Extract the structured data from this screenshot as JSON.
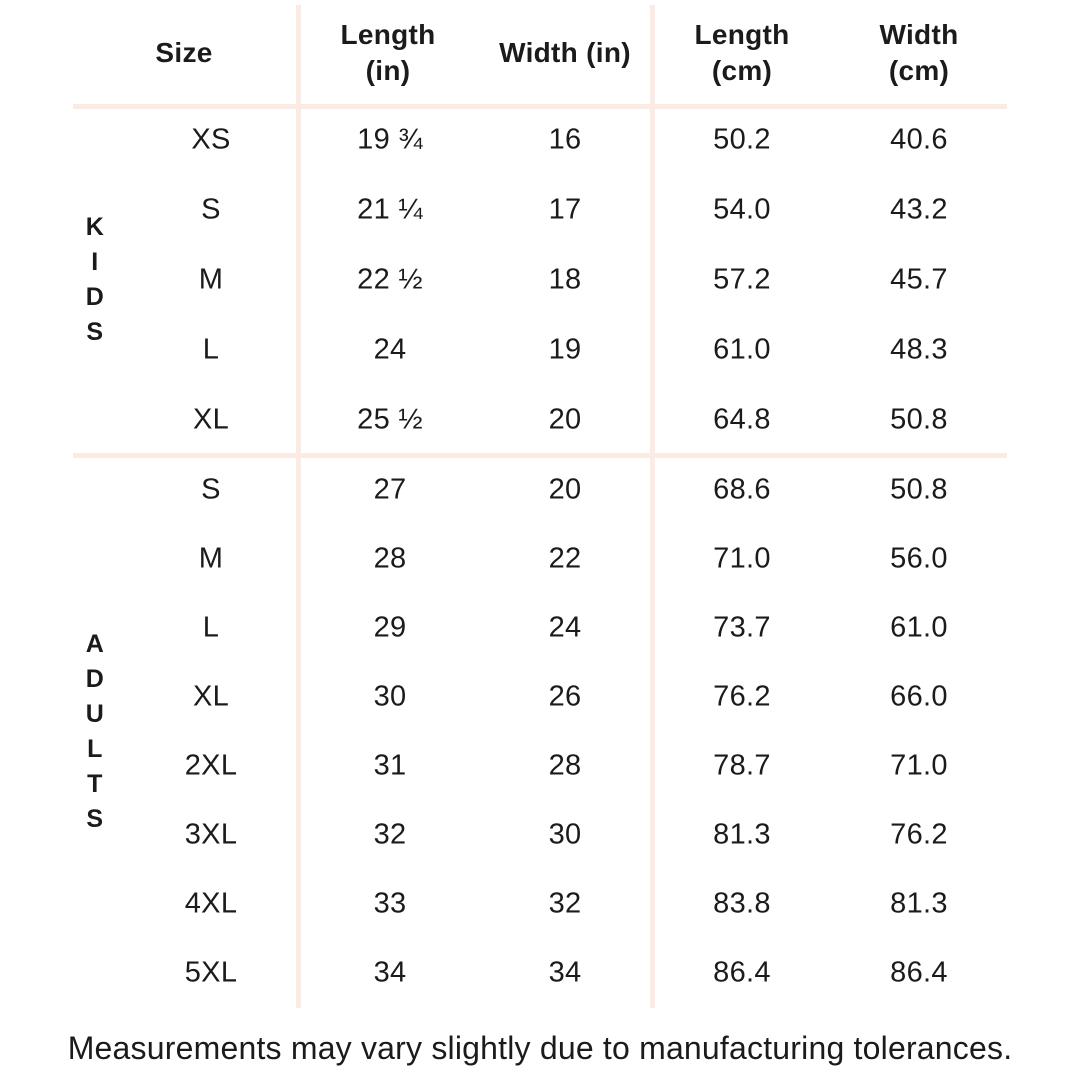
{
  "table": {
    "columns": [
      {
        "id": "size",
        "label": "Size"
      },
      {
        "id": "length_in",
        "label": "Length\n(in)"
      },
      {
        "id": "width_in",
        "label": "Width (in)"
      },
      {
        "id": "length_cm",
        "label": "Length\n(cm)"
      },
      {
        "id": "width_cm",
        "label": "Width\n(cm)"
      }
    ],
    "sections": [
      {
        "group": "KIDS",
        "rows": [
          {
            "size": "XS",
            "length_in": "19 ¾",
            "width_in": "16",
            "length_cm": "50.2",
            "width_cm": "40.6"
          },
          {
            "size": "S",
            "length_in": "21 ¼",
            "width_in": "17",
            "length_cm": "54.0",
            "width_cm": "43.2"
          },
          {
            "size": "M",
            "length_in": "22 ½",
            "width_in": "18",
            "length_cm": "57.2",
            "width_cm": "45.7"
          },
          {
            "size": "L",
            "length_in": "24",
            "width_in": "19",
            "length_cm": "61.0",
            "width_cm": "48.3"
          },
          {
            "size": "XL",
            "length_in": "25 ½",
            "width_in": "20",
            "length_cm": "64.8",
            "width_cm": "50.8"
          }
        ]
      },
      {
        "group": "ADULTS",
        "rows": [
          {
            "size": "S",
            "length_in": "27",
            "width_in": "20",
            "length_cm": "68.6",
            "width_cm": "50.8"
          },
          {
            "size": "M",
            "length_in": "28",
            "width_in": "22",
            "length_cm": "71.0",
            "width_cm": "56.0"
          },
          {
            "size": "L",
            "length_in": "29",
            "width_in": "24",
            "length_cm": "73.7",
            "width_cm": "61.0"
          },
          {
            "size": "XL",
            "length_in": "30",
            "width_in": "26",
            "length_cm": "76.2",
            "width_cm": "66.0"
          },
          {
            "size": "2XL",
            "length_in": "31",
            "width_in": "28",
            "length_cm": "78.7",
            "width_cm": "71.0"
          },
          {
            "size": "3XL",
            "length_in": "32",
            "width_in": "30",
            "length_cm": "81.3",
            "width_cm": "76.2"
          },
          {
            "size": "4XL",
            "length_in": "33",
            "width_in": "32",
            "length_cm": "83.8",
            "width_cm": "81.3"
          },
          {
            "size": "5XL",
            "length_in": "34",
            "width_in": "34",
            "length_cm": "86.4",
            "width_cm": "86.4"
          }
        ]
      }
    ]
  },
  "footer": {
    "note": "Measurements may vary slightly due to manufacturing tolerances."
  },
  "colors": {
    "line": "#fcebe3",
    "text": "#1c1a1b",
    "background": "#ffffff"
  }
}
